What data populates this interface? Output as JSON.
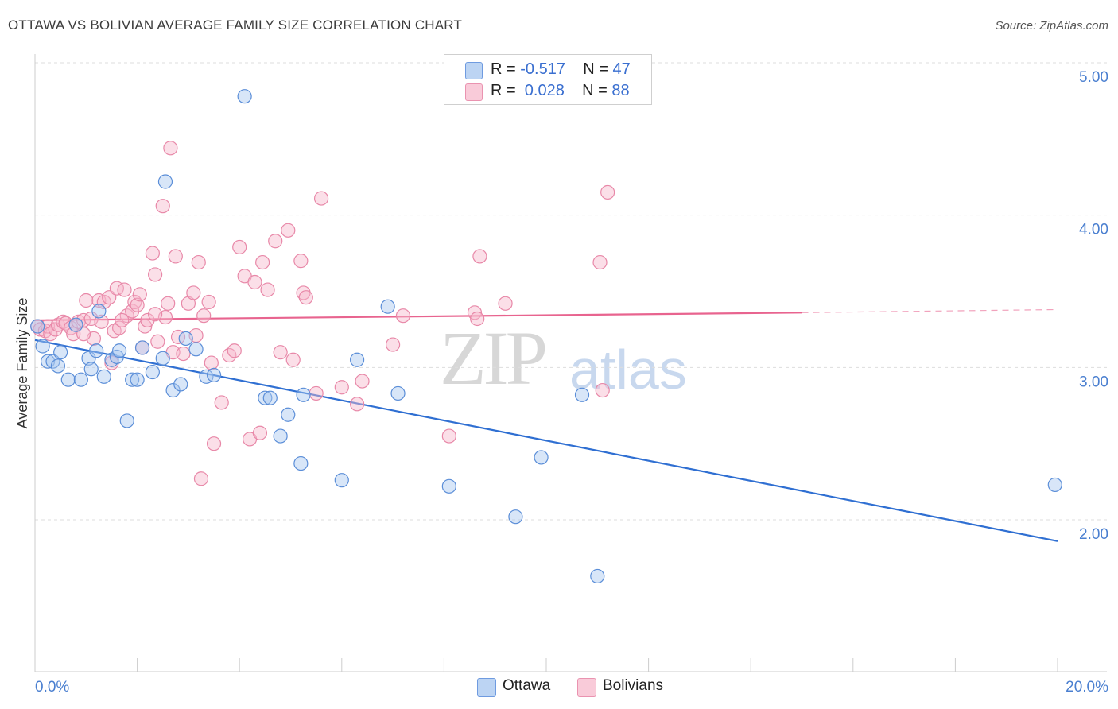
{
  "title": "OTTAWA VS BOLIVIAN AVERAGE FAMILY SIZE CORRELATION CHART",
  "source": "Source: ZipAtlas.com",
  "watermark": {
    "zip": "ZIP",
    "atlas": "atlas"
  },
  "legend": {
    "rows": [
      {
        "r_label": "R = ",
        "r_value": "-0.517",
        "n_label": "N = ",
        "n_value": "47",
        "color": "#a9c7f0"
      },
      {
        "r_label": "R = ",
        "r_value": " 0.028",
        "n_label": "N = ",
        "n_value": "88",
        "color": "#f7b8cb"
      }
    ]
  },
  "bottom_legend": [
    {
      "label": "Ottawa",
      "color": "#a9c7f0"
    },
    {
      "label": "Bolivians",
      "color": "#f7b8cb"
    }
  ],
  "chart_data": {
    "type": "scatter",
    "title": "OTTAWA VS BOLIVIAN AVERAGE FAMILY SIZE CORRELATION CHART",
    "xlabel": "",
    "ylabel": "Average Family Size",
    "xlim": [
      0,
      20
    ],
    "ylim": [
      1.0,
      5.15
    ],
    "x_tick_labels": [
      "0.0%",
      "20.0%"
    ],
    "y_ticks": [
      2.0,
      3.0,
      4.0,
      5.0
    ],
    "y_tick_labels": [
      "2.00",
      "3.00",
      "4.00",
      "5.00"
    ],
    "grid": "horizontal dashed",
    "legend_placement": "top-center",
    "colors": {
      "ottawa_fill": "#a9c7f0",
      "ottawa_stroke": "#5b8ed8",
      "ottawa_line": "#2f6fd2",
      "bolivians_fill": "#f7b8cb",
      "bolivians_stroke": "#e888a8",
      "bolivians_line": "#e8648f"
    },
    "series": [
      {
        "name": "Ottawa",
        "points": [
          [
            0.15,
            3.14
          ],
          [
            0.25,
            3.04
          ],
          [
            0.35,
            3.04
          ],
          [
            0.45,
            3.01
          ],
          [
            0.5,
            3.1
          ],
          [
            0.65,
            2.92
          ],
          [
            0.8,
            3.28
          ],
          [
            0.9,
            2.92
          ],
          [
            1.05,
            3.06
          ],
          [
            1.1,
            2.99
          ],
          [
            1.2,
            3.11
          ],
          [
            1.25,
            3.37
          ],
          [
            1.35,
            2.94
          ],
          [
            1.5,
            3.05
          ],
          [
            1.6,
            3.07
          ],
          [
            1.65,
            3.11
          ],
          [
            1.8,
            2.65
          ],
          [
            1.9,
            2.92
          ],
          [
            2.0,
            2.92
          ],
          [
            2.1,
            3.13
          ],
          [
            2.3,
            2.97
          ],
          [
            2.5,
            3.06
          ],
          [
            2.55,
            4.22
          ],
          [
            2.7,
            2.85
          ],
          [
            2.85,
            2.89
          ],
          [
            2.95,
            3.19
          ],
          [
            3.15,
            3.12
          ],
          [
            3.35,
            2.94
          ],
          [
            3.5,
            2.95
          ],
          [
            4.1,
            4.78
          ],
          [
            4.5,
            2.8
          ],
          [
            4.6,
            2.8
          ],
          [
            4.8,
            2.55
          ],
          [
            4.95,
            2.69
          ],
          [
            5.2,
            2.37
          ],
          [
            5.25,
            2.82
          ],
          [
            6.0,
            2.26
          ],
          [
            6.3,
            3.05
          ],
          [
            6.9,
            3.4
          ],
          [
            7.1,
            2.83
          ],
          [
            8.1,
            2.22
          ],
          [
            9.4,
            2.02
          ],
          [
            9.9,
            2.41
          ],
          [
            10.7,
            2.82
          ],
          [
            11.0,
            1.63
          ],
          [
            19.95,
            2.23
          ],
          [
            0.05,
            3.27
          ]
        ],
        "trend": [
          [
            0.0,
            3.18
          ],
          [
            20.0,
            1.86
          ]
        ]
      },
      {
        "name": "Bolivians",
        "points": [
          [
            0.05,
            3.27
          ],
          [
            0.1,
            3.25
          ],
          [
            0.2,
            3.24
          ],
          [
            0.25,
            3.27
          ],
          [
            0.3,
            3.22
          ],
          [
            0.4,
            3.25
          ],
          [
            0.45,
            3.28
          ],
          [
            0.55,
            3.3
          ],
          [
            0.6,
            3.29
          ],
          [
            0.7,
            3.26
          ],
          [
            0.75,
            3.22
          ],
          [
            0.85,
            3.3
          ],
          [
            0.95,
            3.31
          ],
          [
            1.0,
            3.44
          ],
          [
            1.1,
            3.32
          ],
          [
            1.15,
            3.19
          ],
          [
            1.25,
            3.44
          ],
          [
            1.3,
            3.3
          ],
          [
            1.35,
            3.43
          ],
          [
            1.45,
            3.46
          ],
          [
            1.5,
            3.03
          ],
          [
            1.55,
            3.24
          ],
          [
            1.6,
            3.52
          ],
          [
            1.65,
            3.26
          ],
          [
            1.75,
            3.51
          ],
          [
            1.8,
            3.34
          ],
          [
            1.9,
            3.37
          ],
          [
            1.95,
            3.43
          ],
          [
            2.0,
            3.41
          ],
          [
            2.05,
            3.48
          ],
          [
            2.1,
            3.13
          ],
          [
            2.15,
            3.27
          ],
          [
            2.2,
            3.31
          ],
          [
            2.3,
            3.75
          ],
          [
            2.35,
            3.61
          ],
          [
            2.4,
            3.17
          ],
          [
            2.5,
            4.06
          ],
          [
            2.55,
            3.33
          ],
          [
            2.6,
            3.42
          ],
          [
            2.65,
            4.44
          ],
          [
            2.7,
            3.1
          ],
          [
            2.75,
            3.73
          ],
          [
            2.8,
            3.2
          ],
          [
            2.9,
            3.09
          ],
          [
            3.0,
            3.42
          ],
          [
            3.1,
            3.49
          ],
          [
            3.2,
            3.69
          ],
          [
            3.3,
            3.34
          ],
          [
            3.4,
            3.43
          ],
          [
            3.45,
            3.03
          ],
          [
            3.5,
            2.5
          ],
          [
            3.65,
            2.77
          ],
          [
            3.8,
            3.08
          ],
          [
            3.9,
            3.11
          ],
          [
            4.0,
            3.79
          ],
          [
            4.1,
            3.6
          ],
          [
            4.2,
            2.53
          ],
          [
            4.3,
            3.56
          ],
          [
            4.4,
            2.57
          ],
          [
            4.45,
            3.69
          ],
          [
            4.55,
            3.51
          ],
          [
            4.7,
            3.83
          ],
          [
            4.8,
            3.1
          ],
          [
            4.95,
            3.9
          ],
          [
            5.05,
            3.05
          ],
          [
            5.2,
            3.7
          ],
          [
            5.25,
            3.49
          ],
          [
            5.3,
            3.46
          ],
          [
            5.5,
            2.83
          ],
          [
            5.6,
            4.11
          ],
          [
            6.0,
            2.87
          ],
          [
            6.3,
            2.76
          ],
          [
            6.4,
            2.91
          ],
          [
            7.0,
            3.15
          ],
          [
            7.2,
            3.34
          ],
          [
            8.1,
            2.55
          ],
          [
            8.6,
            3.36
          ],
          [
            8.7,
            3.73
          ],
          [
            9.2,
            3.42
          ],
          [
            11.05,
            3.69
          ],
          [
            11.1,
            2.85
          ],
          [
            11.2,
            4.15
          ],
          [
            3.25,
            2.27
          ],
          [
            8.65,
            3.32
          ],
          [
            3.15,
            3.21
          ],
          [
            2.35,
            3.35
          ],
          [
            1.7,
            3.31
          ],
          [
            0.95,
            3.22
          ]
        ],
        "trend": [
          [
            0.0,
            3.31
          ],
          [
            15.0,
            3.36
          ]
        ],
        "trend_extension": [
          [
            15.0,
            3.36
          ],
          [
            20.0,
            3.38
          ]
        ]
      }
    ]
  }
}
